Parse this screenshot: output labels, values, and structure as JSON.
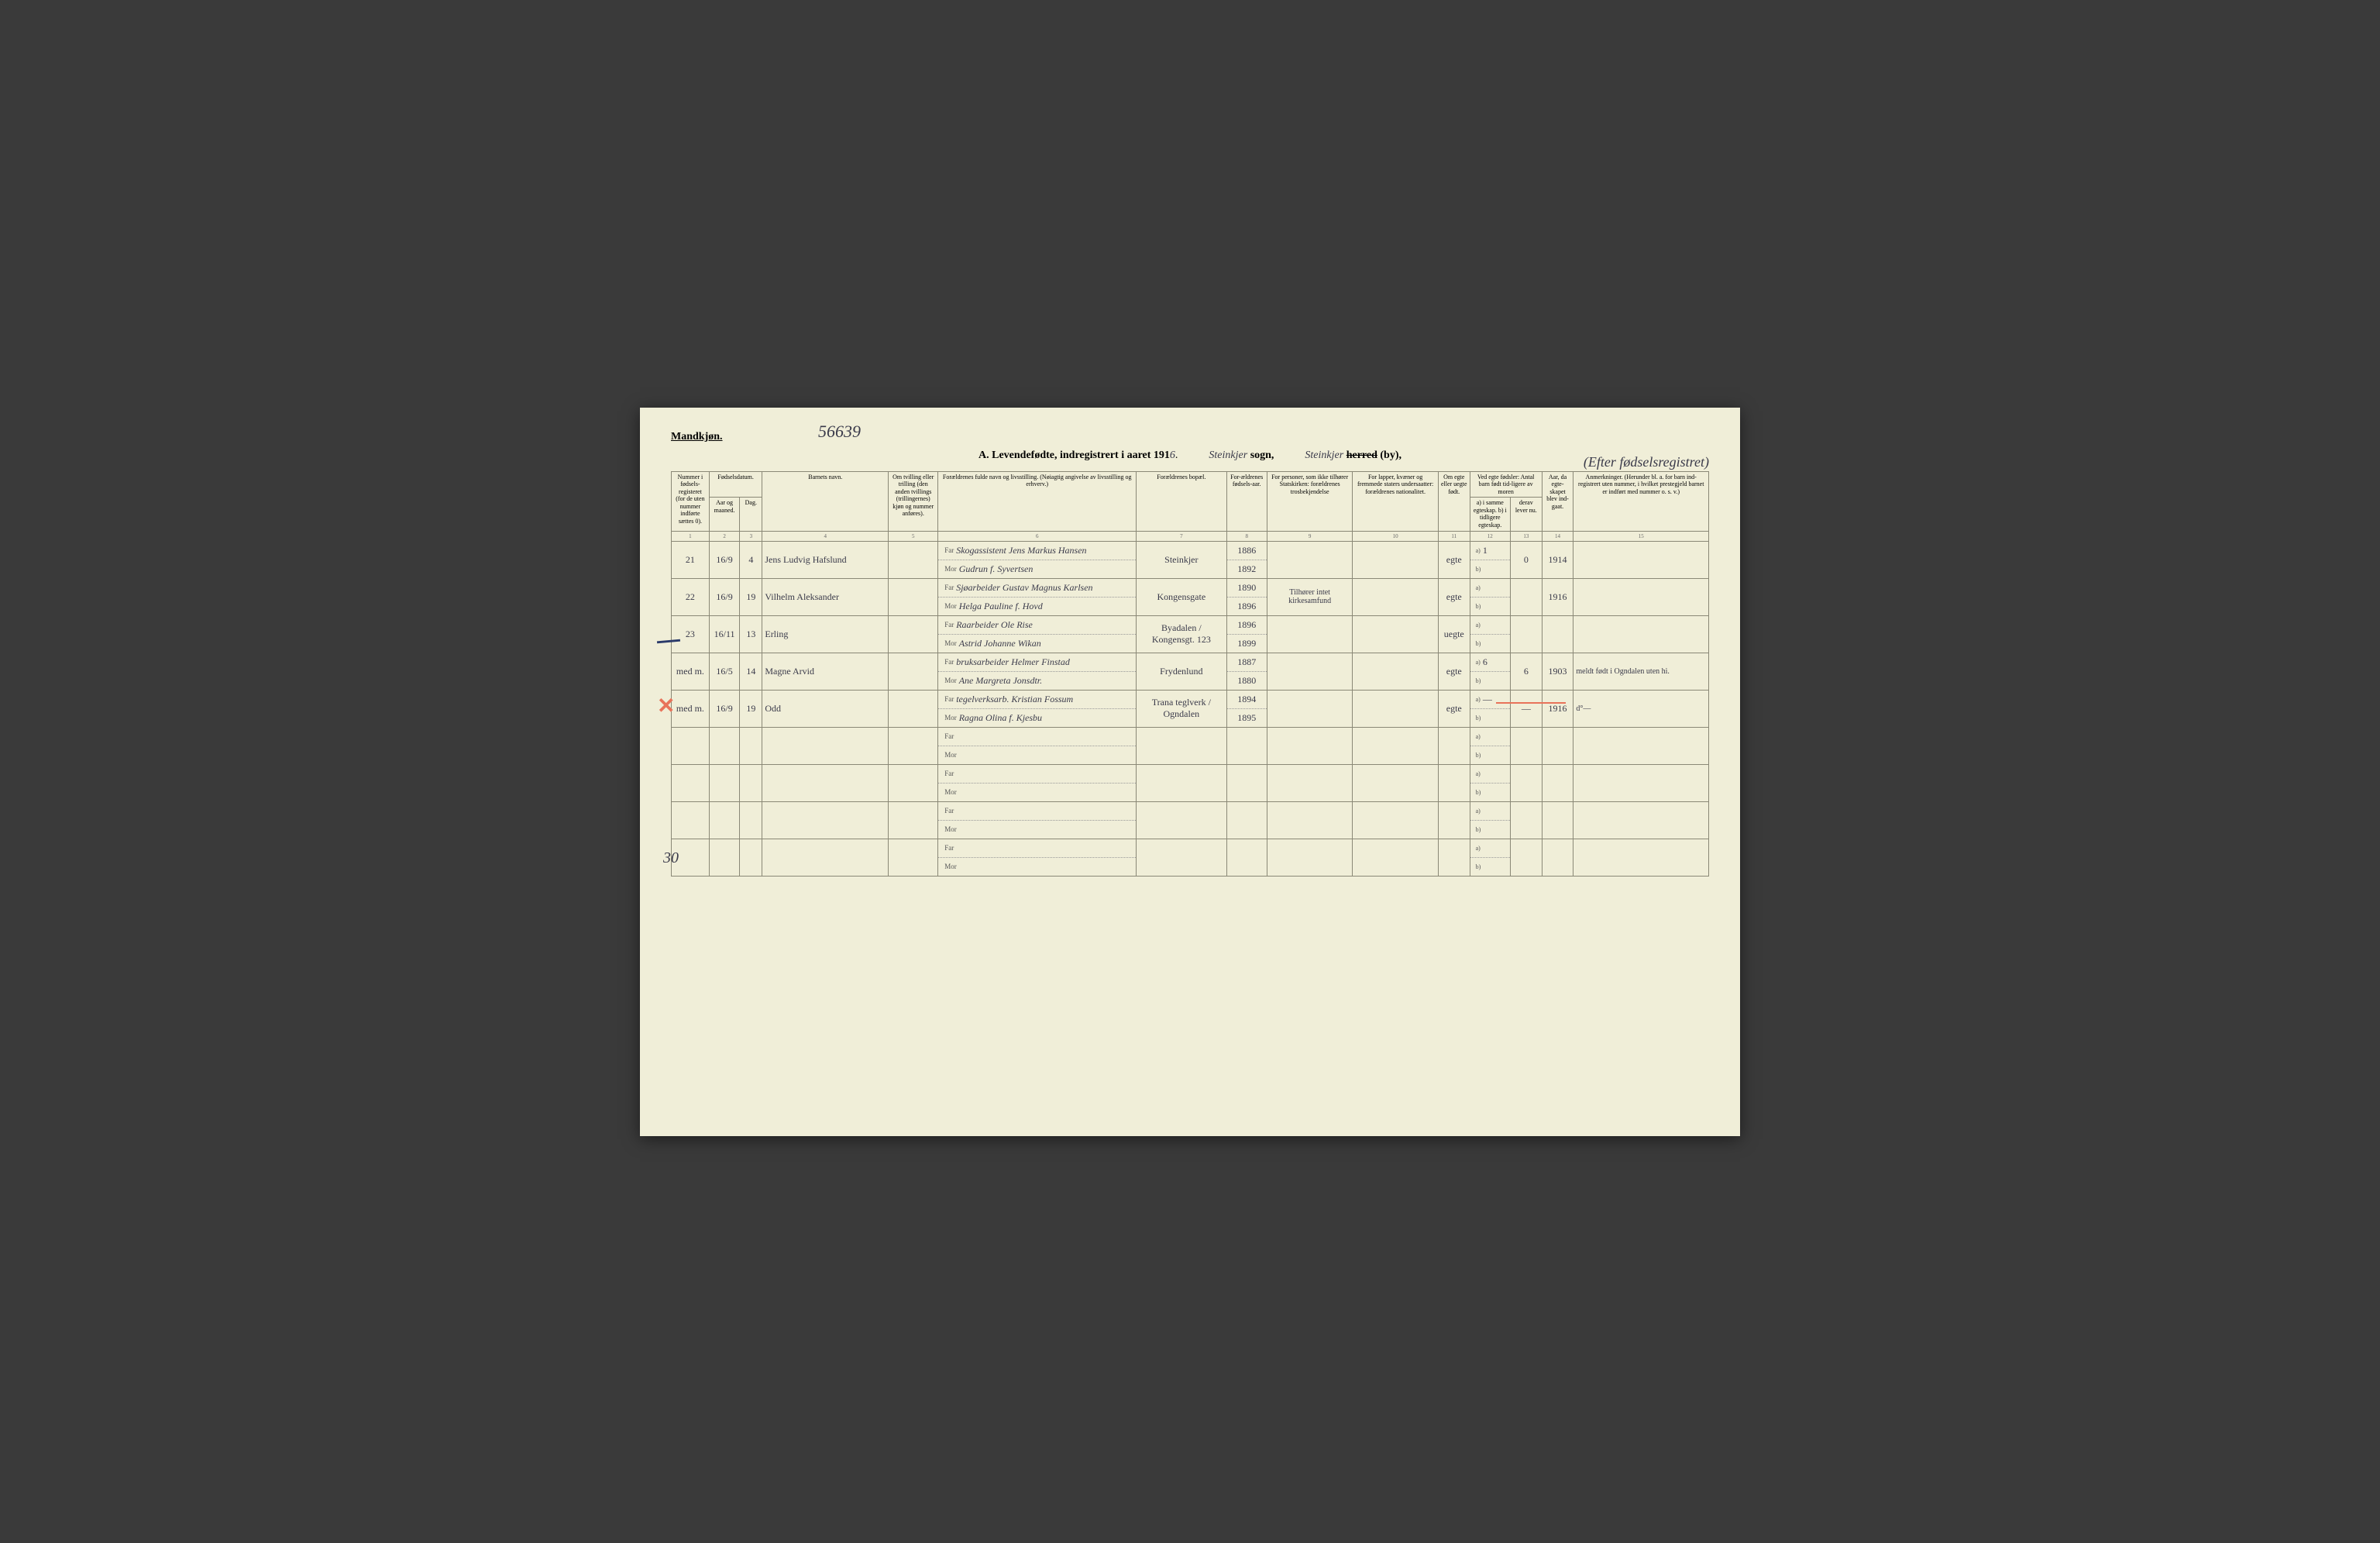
{
  "header": {
    "gender_label": "Mandkjøn.",
    "ref_number": "56639",
    "title_prefix": "A.",
    "title_main": "Levendefødte, indregistrert i aaret 191",
    "title_year_suffix": "6",
    "sogn_value": "Steinkjer",
    "sogn_label": "sogn,",
    "herred_value": "Steinkjer",
    "herred_label_strike": "herred",
    "herred_label_by": "(by),",
    "right_annotation": "(Efter fødselsregistret)"
  },
  "columns": {
    "c1": "Nummer i fødsels-registeret (for de uten nummer indførte sættes 0).",
    "c2_group": "Fødselsdatum.",
    "c2a": "Aar og maaned.",
    "c2b": "Dag.",
    "c3": "Barnets navn.",
    "c4": "Om tvilling eller trilling (den anden tvillings (trillingernes) kjøn og nummer anføres).",
    "c5": "Forældrenes fulde navn og livsstilling. (Nøiagtig angivelse av livsstilling og erhverv.)",
    "c6": "Forældrenes bopæl.",
    "c7": "For-ældrenes fødsels-aar.",
    "c8": "For personer, som ikke tilhører Statskirken: forældrenes trosbekjendelse",
    "c9": "For lapper, kvæner og fremmede staters undersaatter: forældrenes nationalitet.",
    "c10": "Om egte eller uegte født.",
    "c11_group": "Ved egte fødsler: Antal barn født tid-ligere av moren",
    "c11a": "a) i samme egteskap. b) i tidligere egteskap.",
    "c11b": "derav lever nu.",
    "c12": "Aar, da egte-skapet blev ind-gaat.",
    "c13": "Anmerkninger. (Herunder bl. a. for barn ind-registrert uten nummer, i hvilket prestegjeld barnet er indført med nummer o. s. v.)"
  },
  "col_numbers": [
    "1",
    "2",
    "3",
    "4",
    "5",
    "6",
    "7",
    "8",
    "9",
    "10",
    "11",
    "12",
    "13",
    "14",
    "15"
  ],
  "labels": {
    "far": "Far",
    "mor": "Mor",
    "a": "a)",
    "b": "b)"
  },
  "rows": [
    {
      "num": "21",
      "date": "16/9",
      "day": "4",
      "name": "Jens Ludvig Hafslund",
      "far": "Skogassistent Jens Markus Hansen",
      "mor": "Gudrun f. Syvertsen",
      "bopael": "Steinkjer",
      "far_year": "1886",
      "mor_year": "1892",
      "tros": "",
      "egte": "egte",
      "a_val": "1",
      "b_val": "0",
      "aar": "1914",
      "anm": ""
    },
    {
      "num": "22",
      "date": "16/9",
      "day": "19",
      "name": "Vilhelm Aleksander",
      "far": "Sjøarbeider Gustav Magnus Karlsen",
      "mor": "Helga Pauline f. Hovd",
      "bopael": "Kongensgate",
      "far_year": "1890",
      "mor_year": "1896",
      "tros": "Tilhører intet kirkesamfund",
      "egte": "egte",
      "a_val": "",
      "b_val": "",
      "aar": "1916",
      "anm": ""
    },
    {
      "num": "23",
      "date": "16/11",
      "day": "13",
      "name": "Erling",
      "far": "Raarbeider Ole Rise",
      "mor": "Astrid Johanne Wikan",
      "bopael": "Byadalen / Kongensgt. 123",
      "far_year": "1896",
      "mor_year": "1899",
      "tros": "",
      "egte": "uegte",
      "a_val": "",
      "b_val": "",
      "aar": "",
      "anm": ""
    },
    {
      "num": "med m.",
      "date": "16/5",
      "day": "14",
      "name": "Magne Arvid",
      "far": "bruksarbeider Helmer Finstad",
      "mor": "Ane Margreta Jonsdtr.",
      "bopael": "Frydenlund",
      "far_year": "1887",
      "mor_year": "1880",
      "tros": "",
      "egte": "egte",
      "a_val": "6",
      "b_val": "6",
      "aar": "1903",
      "anm": "meldt født i Ogndalen uten hi."
    },
    {
      "num": "med m.",
      "date": "16/9",
      "day": "19",
      "name": "Odd",
      "far": "tegelverksarb. Kristian Fossum",
      "mor": "Ragna Olina f. Kjesbu",
      "bopael": "Trana teglverk / Ogndalen",
      "far_year": "1894",
      "mor_year": "1895",
      "tros": "",
      "egte": "egte",
      "a_val": "—",
      "b_val": "—",
      "aar": "1916",
      "anm": "d°—"
    }
  ],
  "margin": {
    "thirty": "30"
  },
  "styling": {
    "page_bg": "#f0eed8",
    "border_color": "#8a8876",
    "handwriting_color": "#3a3a4a",
    "red_mark_color": "#e8735a",
    "header_font_size": 14,
    "cell_font_size": 9
  }
}
